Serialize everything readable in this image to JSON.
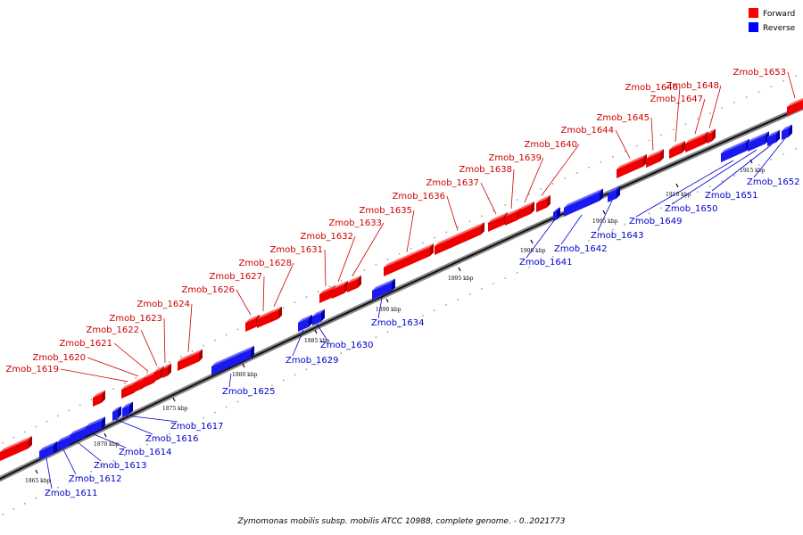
{
  "legend": {
    "forward_label": "Forward",
    "reverse_label": "Reverse",
    "forward_color": "#ff0000",
    "reverse_color": "#0000ff"
  },
  "caption": "Zymomonas mobilis subsp. mobilis ATCC 10988, complete genome. - 0..2021773",
  "ticks": [
    "1865 kbp",
    "1870 kbp",
    "1875 kbp",
    "1880 kbp",
    "1885 kbp",
    "1890 kbp",
    "1895 kbp",
    "1900 kbp",
    "1905 kbp",
    "1910 kbp",
    "1915 kbp"
  ],
  "forward_genes": [
    "Zmob_1619",
    "Zmob_1620",
    "Zmob_1621",
    "Zmob_1622",
    "Zmob_1623",
    "Zmob_1624",
    "Zmob_1626",
    "Zmob_1627",
    "Zmob_1628",
    "Zmob_1631",
    "Zmob_1632",
    "Zmob_1633",
    "Zmob_1635",
    "Zmob_1636",
    "Zmob_1637",
    "Zmob_1638",
    "Zmob_1639",
    "Zmob_1640",
    "Zmob_1644",
    "Zmob_1645",
    "Zmob_1646",
    "Zmob_1647",
    "Zmob_1648",
    "Zmob_1653"
  ],
  "reverse_genes": [
    "Zmob_1611",
    "Zmob_1612",
    "Zmob_1613",
    "Zmob_1614",
    "Zmob_1616",
    "Zmob_1617",
    "Zmob_1625",
    "Zmob_1629",
    "Zmob_1630",
    "Zmob_1634",
    "Zmob_1641",
    "Zmob_1642",
    "Zmob_1643",
    "Zmob_1649",
    "Zmob_1650",
    "Zmob_1651",
    "Zmob_1652"
  ]
}
